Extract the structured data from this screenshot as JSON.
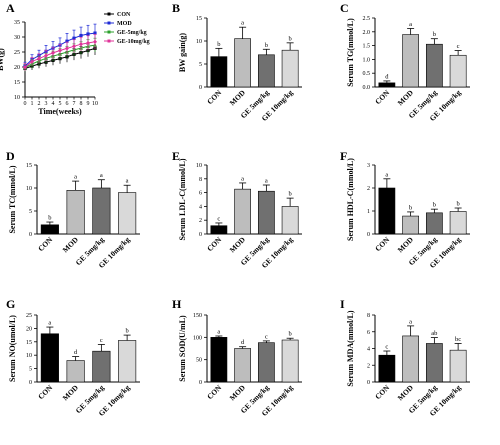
{
  "figure": {
    "colors": {
      "CON": "#000000",
      "MOD": "#bdbdbd",
      "GE-5mg/kg": "#707070",
      "GE-10mg/kg": "#d9d9d9"
    }
  },
  "chart_data": [
    {
      "panel": "A",
      "type": "line",
      "xlabel": "Time(weeks)",
      "ylabel": "BW(g)",
      "x": [
        0,
        1,
        2,
        3,
        4,
        5,
        6,
        7,
        8,
        9,
        10
      ],
      "xlim": [
        0,
        10
      ],
      "ylim": [
        10,
        35
      ],
      "yticks": [
        10,
        15,
        20,
        25,
        30,
        35
      ],
      "legend_position": "top-right",
      "series": [
        {
          "name": "CON",
          "color": "#000000",
          "marker": "square",
          "values": [
            19.5,
            20.3,
            21.0,
            21.6,
            22.2,
            22.8,
            23.4,
            24.2,
            24.8,
            25.5,
            26.2
          ],
          "errors": [
            1.2,
            1.3,
            1.4,
            1.5,
            1.6,
            1.7,
            1.8,
            1.9,
            2.0,
            2.1,
            2.2
          ]
        },
        {
          "name": "MOD",
          "color": "#1f2bd6",
          "marker": "square",
          "values": [
            20.3,
            22.5,
            23.8,
            25.2,
            26.3,
            27.3,
            28.6,
            29.6,
            30.5,
            31.0,
            31.3
          ],
          "errors": [
            1.3,
            1.6,
            1.8,
            2.0,
            2.2,
            2.4,
            2.6,
            2.7,
            2.8,
            2.9,
            3.0
          ]
        },
        {
          "name": "GE-5mg/kg",
          "color": "#2ca02c",
          "marker": "triangle",
          "values": [
            19.8,
            21.0,
            22.0,
            22.9,
            23.6,
            24.3,
            25.0,
            25.7,
            26.3,
            26.9,
            27.3
          ],
          "errors": [
            1.2,
            1.4,
            1.5,
            1.6,
            1.7,
            1.8,
            1.9,
            2.0,
            2.1,
            2.2,
            2.3
          ]
        },
        {
          "name": "GE-10mg/kg",
          "color": "#e0349a",
          "marker": "diamond",
          "values": [
            19.9,
            21.8,
            22.8,
            23.8,
            24.7,
            25.5,
            26.2,
            26.9,
            27.6,
            28.0,
            28.4
          ],
          "errors": [
            1.2,
            1.4,
            1.6,
            1.8,
            1.9,
            2.0,
            2.1,
            2.2,
            2.3,
            2.4,
            2.5
          ]
        }
      ]
    },
    {
      "panel": "B",
      "type": "bar",
      "ylabel": "BW gain(g)",
      "categories": [
        "CON",
        "MOD",
        "GE 5mg/kg",
        "GE 10mg/kg"
      ],
      "values": [
        6.6,
        10.5,
        7.0,
        8.0
      ],
      "errors": [
        1.8,
        2.5,
        1.2,
        1.6
      ],
      "letters": [
        "b",
        "a",
        "b",
        "b"
      ],
      "ylim": [
        0,
        15
      ],
      "yticks": [
        0,
        5,
        10,
        15
      ]
    },
    {
      "panel": "C",
      "type": "bar",
      "ylabel": "Serum TG(mmol/L)",
      "categories": [
        "CON",
        "MOD",
        "GE 5mg/kg",
        "GE 10mg/kg"
      ],
      "values": [
        0.15,
        1.9,
        1.55,
        1.15
      ],
      "errors": [
        0.07,
        0.22,
        0.2,
        0.17
      ],
      "letters": [
        "d",
        "a",
        "b",
        "c"
      ],
      "ylim": [
        0,
        2.5
      ],
      "yticks": [
        0.0,
        0.5,
        1.0,
        1.5,
        2.0,
        2.5
      ]
    },
    {
      "panel": "D",
      "type": "bar",
      "ylabel": "Serum TC(mmol/L)",
      "categories": [
        "CON",
        "MOD",
        "GE 5mg/kg",
        "GE 10mg/kg"
      ],
      "values": [
        2.0,
        9.5,
        10.0,
        9.0
      ],
      "errors": [
        0.6,
        2.0,
        1.8,
        1.6
      ],
      "letters": [
        "b",
        "a",
        "a",
        "a"
      ],
      "ylim": [
        0,
        15
      ],
      "yticks": [
        0,
        5,
        10,
        15
      ]
    },
    {
      "panel": "E",
      "type": "bar",
      "ylabel": "Serum LDL-C(mmol/L)",
      "categories": [
        "CON",
        "MOD",
        "GE 5mg/kg",
        "GE 10mg/kg"
      ],
      "values": [
        1.2,
        6.5,
        6.2,
        4.0
      ],
      "errors": [
        0.4,
        0.9,
        0.9,
        1.2
      ],
      "letters": [
        "c",
        "a",
        "a",
        "b"
      ],
      "ylim": [
        0,
        10
      ],
      "yticks": [
        0,
        2,
        4,
        6,
        8,
        10
      ]
    },
    {
      "panel": "F",
      "type": "bar",
      "ylabel": "Serum HDL-C(mmol/L)",
      "categories": [
        "CON",
        "MOD",
        "GE 5mg/kg",
        "GE 10mg/kg"
      ],
      "values": [
        2.0,
        0.78,
        0.92,
        0.98
      ],
      "errors": [
        0.4,
        0.18,
        0.16,
        0.15
      ],
      "letters": [
        "a",
        "b",
        "b",
        "b"
      ],
      "ylim": [
        0,
        3
      ],
      "yticks": [
        0,
        1,
        2,
        3
      ]
    },
    {
      "panel": "G",
      "type": "bar",
      "ylabel": "Serum NO(umol/L)",
      "categories": [
        "CON",
        "MOD",
        "GE 5mg/kg",
        "GE 10mg/kg"
      ],
      "values": [
        18.0,
        8.0,
        11.5,
        15.5
      ],
      "errors": [
        2.5,
        1.5,
        2.5,
        2.0
      ],
      "letters": [
        "a",
        "d",
        "c",
        "b"
      ],
      "ylim": [
        0,
        25
      ],
      "yticks": [
        0,
        5,
        10,
        15,
        20,
        25
      ]
    },
    {
      "panel": "H",
      "type": "bar",
      "ylabel": "Serum SOD(U/mL)",
      "categories": [
        "CON",
        "MOD",
        "GE 5mg/kg",
        "GE 10mg/kg"
      ],
      "values": [
        100,
        75,
        88,
        94
      ],
      "errors": [
        3,
        4,
        4,
        4
      ],
      "letters": [
        "a",
        "d",
        "c",
        "b"
      ],
      "ylim": [
        0,
        150
      ],
      "yticks": [
        0,
        50,
        100,
        150
      ]
    },
    {
      "panel": "I",
      "type": "bar",
      "ylabel": "Serum MDA(mmol/L)",
      "categories": [
        "CON",
        "MOD",
        "GE 5mg/kg",
        "GE 10mg/kg"
      ],
      "values": [
        3.2,
        5.5,
        4.6,
        3.8
      ],
      "errors": [
        0.5,
        1.2,
        0.7,
        0.8
      ],
      "letters": [
        "c",
        "a",
        "ab",
        "bc"
      ],
      "ylim": [
        0,
        8
      ],
      "yticks": [
        0,
        2,
        4,
        6,
        8
      ]
    }
  ]
}
